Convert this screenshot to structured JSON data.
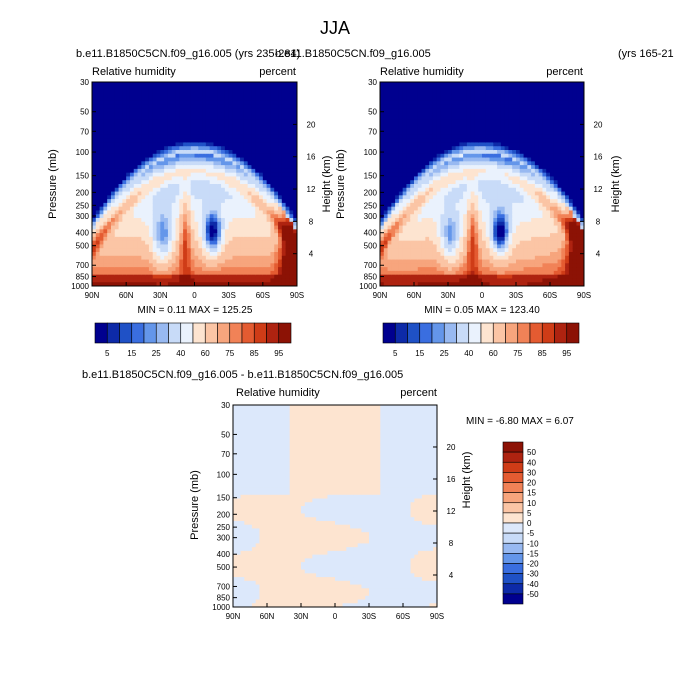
{
  "page_title": "JJA",
  "colors": {
    "rh_scale": [
      "#00008f",
      "#0d2aa8",
      "#1f51c6",
      "#3a6ee0",
      "#6496ea",
      "#98b9f1",
      "#c8dbf8",
      "#eaf2fd",
      "#fde4d0",
      "#fbc5a5",
      "#f7a57d",
      "#f18257",
      "#e45b31",
      "#cf3c17",
      "#ae2310",
      "#8c1205"
    ],
    "diff_scale": [
      "#00008f",
      "#0d2aa8",
      "#1f51c6",
      "#3a6ee0",
      "#6496ea",
      "#98b9f1",
      "#c8dbf8",
      "#dce8fb",
      "#fde4d0",
      "#fbc5a5",
      "#f7a57d",
      "#f18257",
      "#e45b31",
      "#cf3c17",
      "#ae2310",
      "#8c1205"
    ]
  },
  "chart_data": [
    {
      "type": "heatmap",
      "title": "b.e11.B1850C5CN.f09_g16.005 (yrs 235-284)",
      "subtitle_left": "Relative humidity",
      "subtitle_right": "percent",
      "ylabel": "Pressure (mb)",
      "ylabel_right": "Height (km)",
      "x_ticks": [
        "90N",
        "60N",
        "30N",
        "0",
        "30S",
        "60S",
        "90S"
      ],
      "y_ticks": [
        "30",
        "50",
        "70",
        "100",
        "150",
        "200",
        "250",
        "300",
        "400",
        "500",
        "700",
        "850",
        "1000"
      ],
      "y_right_ticks": [
        "20",
        "16",
        "12",
        "8",
        "4"
      ],
      "y_scale": "log",
      "ylim": [
        1000,
        30
      ],
      "min_max_text": "MIN =   0.11   MAX = 125.25",
      "colorbar_labels": [
        "5",
        "15",
        "25",
        "40",
        "60",
        "75",
        "85",
        "95"
      ]
    },
    {
      "type": "heatmap",
      "title": "b.e11.B1850C5CN.f09_g16.005",
      "title_right": "(yrs 165-21",
      "subtitle_left": "Relative humidity",
      "subtitle_right": "percent",
      "ylabel": "Pressure (mb)",
      "ylabel_right": "Height (km)",
      "x_ticks": [
        "90N",
        "60N",
        "30N",
        "0",
        "30S",
        "60S",
        "90S"
      ],
      "y_ticks": [
        "30",
        "50",
        "70",
        "100",
        "150",
        "200",
        "250",
        "300",
        "400",
        "500",
        "700",
        "850",
        "1000"
      ],
      "y_right_ticks": [
        "20",
        "16",
        "12",
        "8",
        "4"
      ],
      "y_scale": "log",
      "ylim": [
        1000,
        30
      ],
      "min_max_text": "MIN =   0.05   MAX = 123.40",
      "colorbar_labels": [
        "5",
        "15",
        "25",
        "40",
        "60",
        "75",
        "85",
        "95"
      ]
    },
    {
      "type": "heatmap",
      "title": "b.e11.B1850C5CN.f09_g16.005 - b.e11.B1850C5CN.f09_g16.005",
      "subtitle_left": "Relative humidity",
      "subtitle_right": "percent",
      "ylabel": "Pressure (mb)",
      "ylabel_right": "Height (km)",
      "x_ticks": [
        "90N",
        "60N",
        "30N",
        "0",
        "30S",
        "60S",
        "90S"
      ],
      "y_ticks": [
        "30",
        "50",
        "70",
        "100",
        "150",
        "200",
        "250",
        "300",
        "400",
        "500",
        "700",
        "850",
        "1000"
      ],
      "y_right_ticks": [
        "20",
        "16",
        "12",
        "8",
        "4"
      ],
      "y_scale": "log",
      "ylim": [
        1000,
        30
      ],
      "min_max_text": "MIN = -6.80   MAX =  6.07",
      "colorbar_labels": [
        "50",
        "40",
        "30",
        "20",
        "15",
        "10",
        "5",
        "0",
        "-5",
        "-10",
        "-15",
        "-20",
        "-30",
        "-40",
        "-50"
      ]
    }
  ]
}
